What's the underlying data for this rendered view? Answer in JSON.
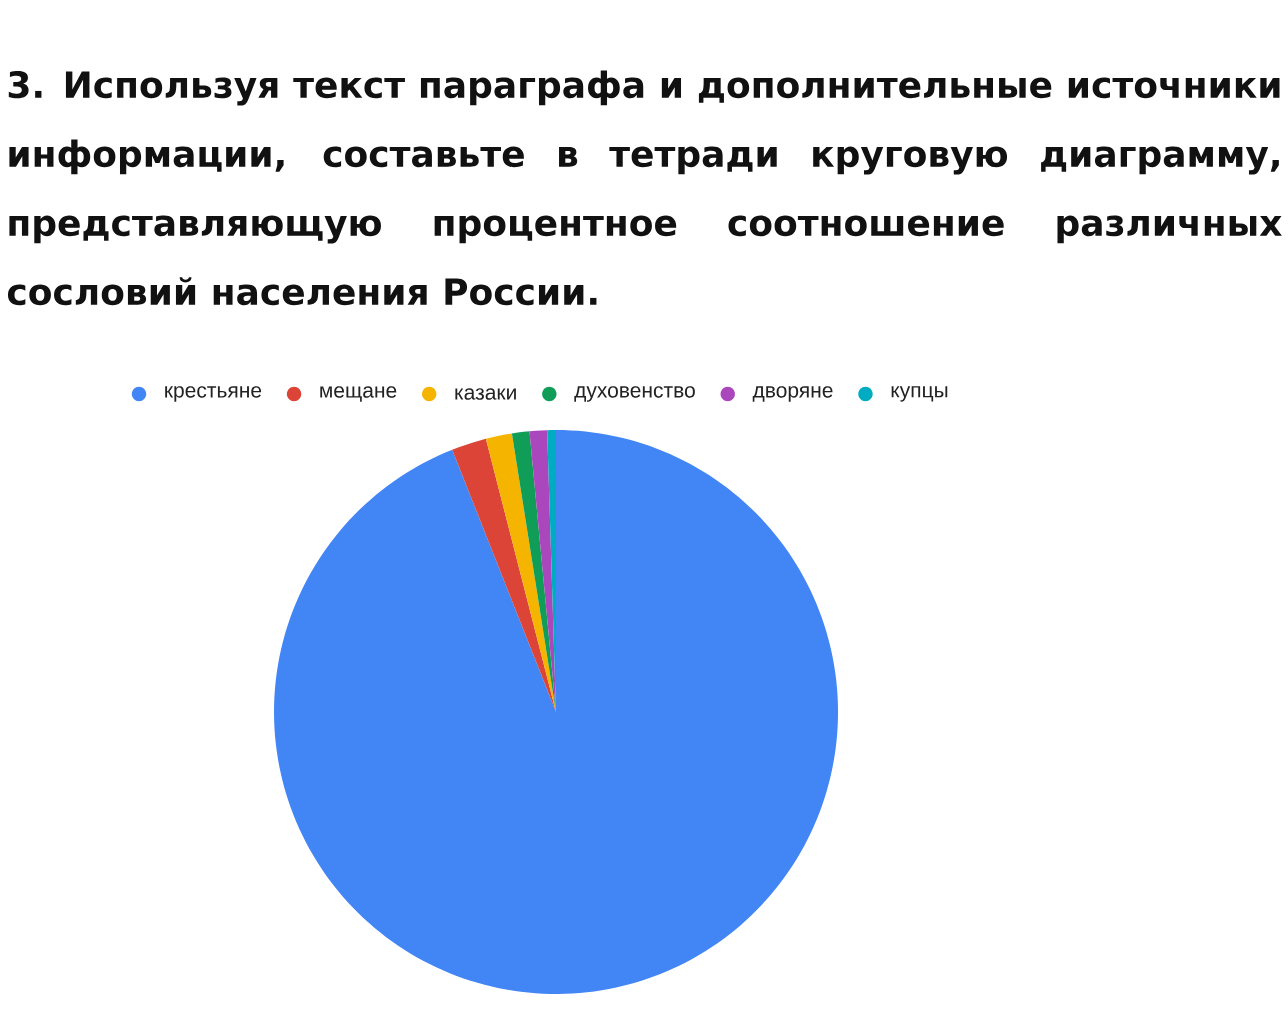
{
  "chart_data": {
    "type": "pie",
    "title": "3. Используя текст параграфа и дополнительные источники информации, составьте в тетради круговую диаграмму, представляющую процентное соотношение различных сословий населения России.",
    "categories": [
      "крестьяне",
      "мещане",
      "казаки",
      "духовенство",
      "дворяне",
      "купцы"
    ],
    "values": [
      94,
      2,
      1.5,
      1,
      1,
      0.5
    ],
    "colors": [
      "#4285f4",
      "#db4437",
      "#f4b400",
      "#0f9d58",
      "#ab47bc",
      "#00acc1"
    ],
    "legend": "top"
  }
}
